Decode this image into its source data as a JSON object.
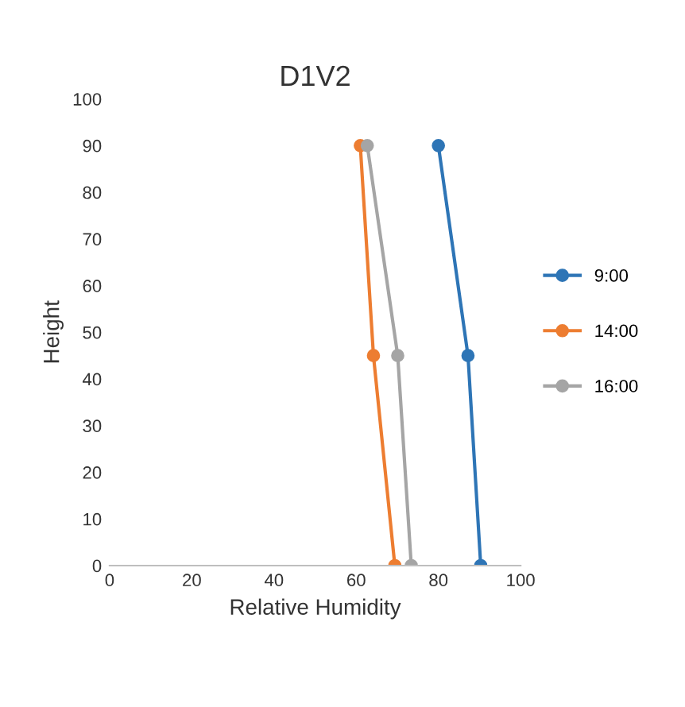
{
  "chart_data": {
    "type": "line",
    "title": "D1V2",
    "xlabel": "Relative Humidity",
    "ylabel": "Height",
    "xlim": [
      0,
      100
    ],
    "xticks": [
      0,
      20,
      40,
      60,
      80,
      100
    ],
    "ylim": [
      0,
      100
    ],
    "yticks": [
      0,
      10,
      20,
      30,
      40,
      50,
      60,
      70,
      80,
      90,
      100
    ],
    "grid": false,
    "legend": "right",
    "marker": "circle",
    "series": [
      {
        "name": "9:00",
        "color": "#2e75b6",
        "x": [
          80,
          87.2,
          90.3
        ],
        "values": [
          90,
          45,
          0
        ]
      },
      {
        "name": "14:00",
        "color": "#ed7d31",
        "x": [
          61,
          64.2,
          69.4
        ],
        "values": [
          90,
          45,
          0
        ]
      },
      {
        "name": "16:00",
        "color": "#a5a5a5",
        "x": [
          62.7,
          70.1,
          73.4
        ],
        "values": [
          90,
          45,
          0
        ]
      }
    ]
  }
}
